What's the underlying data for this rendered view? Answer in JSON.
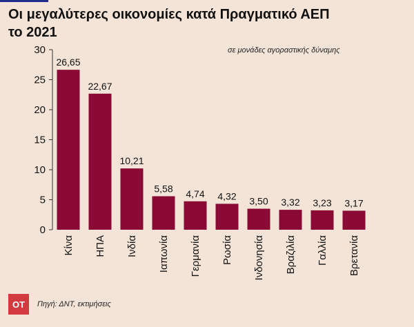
{
  "chart_data": {
    "type": "bar",
    "title": "Οι μεγαλύτερες οικονομίες κατά Πραγματικό ΑΕΠ\nτο 2021",
    "subtitle": "σε μονάδες αγοραστικής δύναμης",
    "categories": [
      "Κίνα",
      "ΗΠΑ",
      "Ινδία",
      "Ιαπωνία",
      "Γερμανία",
      "Ρωσία",
      "Ινδονησία",
      "Βραζιλία",
      "Γαλλία",
      "Βρετανία"
    ],
    "values": [
      26.65,
      22.67,
      10.21,
      5.58,
      4.74,
      4.32,
      3.5,
      3.32,
      3.23,
      3.17
    ],
    "value_labels": [
      "26,65",
      "22,67",
      "10,21",
      "5,58",
      "4,74",
      "4,32",
      "3,50",
      "3,32",
      "3,23",
      "3,17"
    ],
    "ylim": [
      0,
      30
    ],
    "yticks": [
      0,
      5,
      10,
      15,
      20,
      25,
      30
    ],
    "bar_color": "#8b0a35",
    "grid": false
  },
  "footer": {
    "logo_text": "OT",
    "logo_color": "#d23a3f",
    "source": "Πηγή: ΔΝΤ, εκτιμήσεις"
  }
}
